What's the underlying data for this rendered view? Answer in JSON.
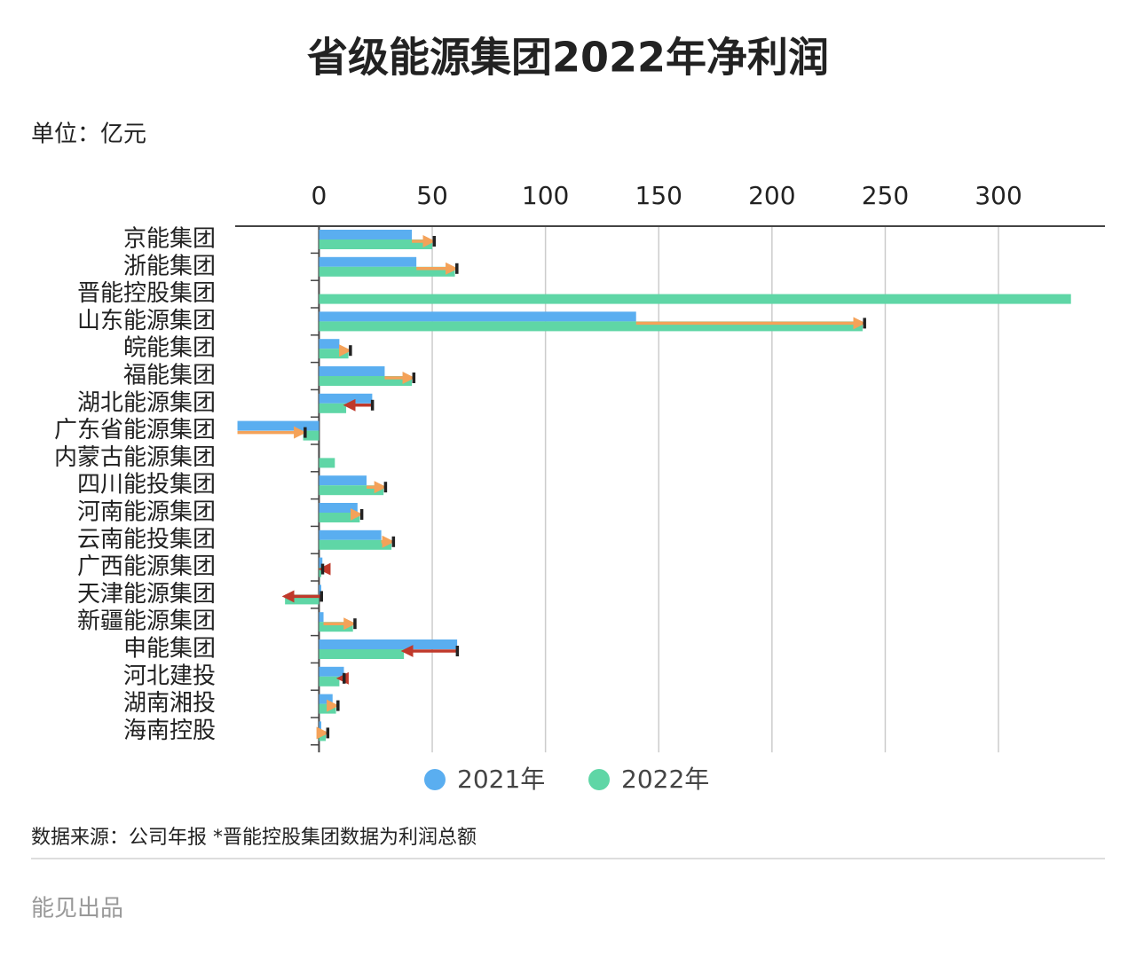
{
  "chart_data": {
    "type": "bar",
    "title": "省级能源集团2022年净利润",
    "unit_label": "单位：亿元",
    "categories": [
      "京能集团",
      "浙能集团",
      "晋能控股集团",
      "山东能源集团",
      "皖能集团",
      "福能集团",
      "湖北能源集团",
      "广东省能源集团",
      "内蒙古能源集团",
      "四川能投集团",
      "河南能源集团",
      "云南能投集团",
      "广西能源集团",
      "天津能源集团",
      "新疆能源集团",
      "申能集团",
      "河北建投",
      "湖南湘投",
      "海南控股"
    ],
    "series": [
      {
        "name": "2021年",
        "color": "#5aaef0",
        "values": [
          41,
          43,
          null,
          140,
          9,
          29,
          23.5,
          -36,
          null,
          21,
          17,
          27.5,
          1.5,
          1,
          2,
          61,
          11,
          6,
          1
        ]
      },
      {
        "name": "2022年",
        "color": "#5fd6a6",
        "values": [
          50,
          60,
          332,
          240,
          13,
          41,
          12,
          -7,
          7,
          28.5,
          18,
          32,
          1,
          -15,
          15,
          37.5,
          9,
          7.5,
          3
        ]
      }
    ],
    "xlim": [
      -37,
      347
    ],
    "xticks": [
      0,
      50,
      100,
      150,
      200,
      250,
      300
    ],
    "grid": true,
    "increase_color": "#f4a259",
    "decrease_color": "#c0392b",
    "source": "数据来源：公司年报 *晋能控股集团数据为利润总额",
    "credit": "能见出品"
  }
}
